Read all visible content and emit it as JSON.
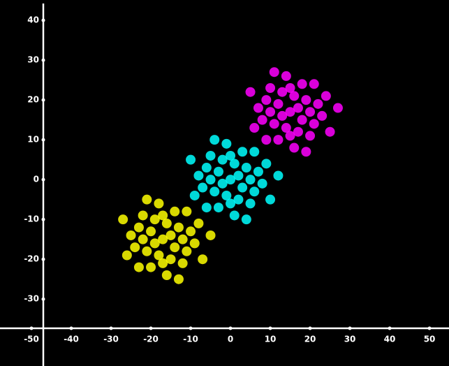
{
  "chart_data": {
    "type": "scatter",
    "xlim": [
      -57.9,
      54.9
    ],
    "ylim": [
      -46.8,
      45.1
    ],
    "xticks": [
      -50,
      -40,
      -30,
      -20,
      -10,
      0,
      10,
      20,
      30,
      40,
      50
    ],
    "yticks": [
      -30,
      -20,
      -10,
      0,
      10,
      20,
      30,
      40
    ],
    "grid": false,
    "series": [
      {
        "color": "#ffff00",
        "x": [
          -17,
          -15,
          -19,
          -14,
          -20,
          -16,
          -18,
          -12,
          -22,
          -13,
          -21,
          -17,
          -17,
          -11,
          -23,
          -15,
          -19,
          -10,
          -24,
          -14,
          -20,
          -9,
          -25,
          -12,
          -22,
          -16,
          -18,
          -8,
          -26,
          -11,
          -23,
          -7,
          -27,
          -13,
          -21,
          -5
        ],
        "values": [
          -15,
          -14,
          -16,
          -17,
          -13,
          -11,
          -19,
          -15,
          -15,
          -12,
          -18,
          -9,
          -21,
          -18,
          -12,
          -20,
          -10,
          -13,
          -17,
          -8,
          -22,
          -16,
          -14,
          -21,
          -9,
          -24,
          -6,
          -11,
          -19,
          -8,
          -22,
          -20,
          -10,
          -25,
          -5,
          -14
        ]
      },
      {
        "color": "#00ffff",
        "x": [
          0,
          2,
          -2,
          3,
          -3,
          1,
          -1,
          5,
          -5,
          4,
          -4,
          0,
          0,
          6,
          -6,
          2,
          -2,
          7,
          -7,
          3,
          -3,
          8,
          -8,
          5,
          -5,
          1,
          -1,
          9,
          -9,
          6,
          -6,
          10,
          -10,
          4,
          -4,
          12
        ],
        "values": [
          0,
          1,
          -1,
          -2,
          2,
          4,
          -4,
          0,
          0,
          3,
          -3,
          6,
          -6,
          -3,
          3,
          -5,
          5,
          2,
          -2,
          7,
          -7,
          -1,
          1,
          -6,
          6,
          -9,
          9,
          4,
          -4,
          7,
          -7,
          -5,
          5,
          -10,
          10,
          1
        ]
      },
      {
        "color": "#ff00ff",
        "x": [
          15,
          17,
          13,
          18,
          12,
          16,
          14,
          20,
          10,
          19,
          11,
          15,
          15,
          21,
          9,
          17,
          13,
          22,
          8,
          18,
          12,
          23,
          7,
          20,
          10,
          16,
          14,
          24,
          6,
          21,
          9,
          25,
          5,
          19,
          11,
          27
        ],
        "values": [
          17,
          18,
          16,
          15,
          19,
          21,
          13,
          17,
          17,
          20,
          14,
          23,
          11,
          14,
          20,
          12,
          22,
          19,
          15,
          24,
          10,
          16,
          18,
          11,
          23,
          8,
          26,
          21,
          13,
          24,
          10,
          12,
          22,
          7,
          27,
          18
        ]
      }
    ]
  }
}
